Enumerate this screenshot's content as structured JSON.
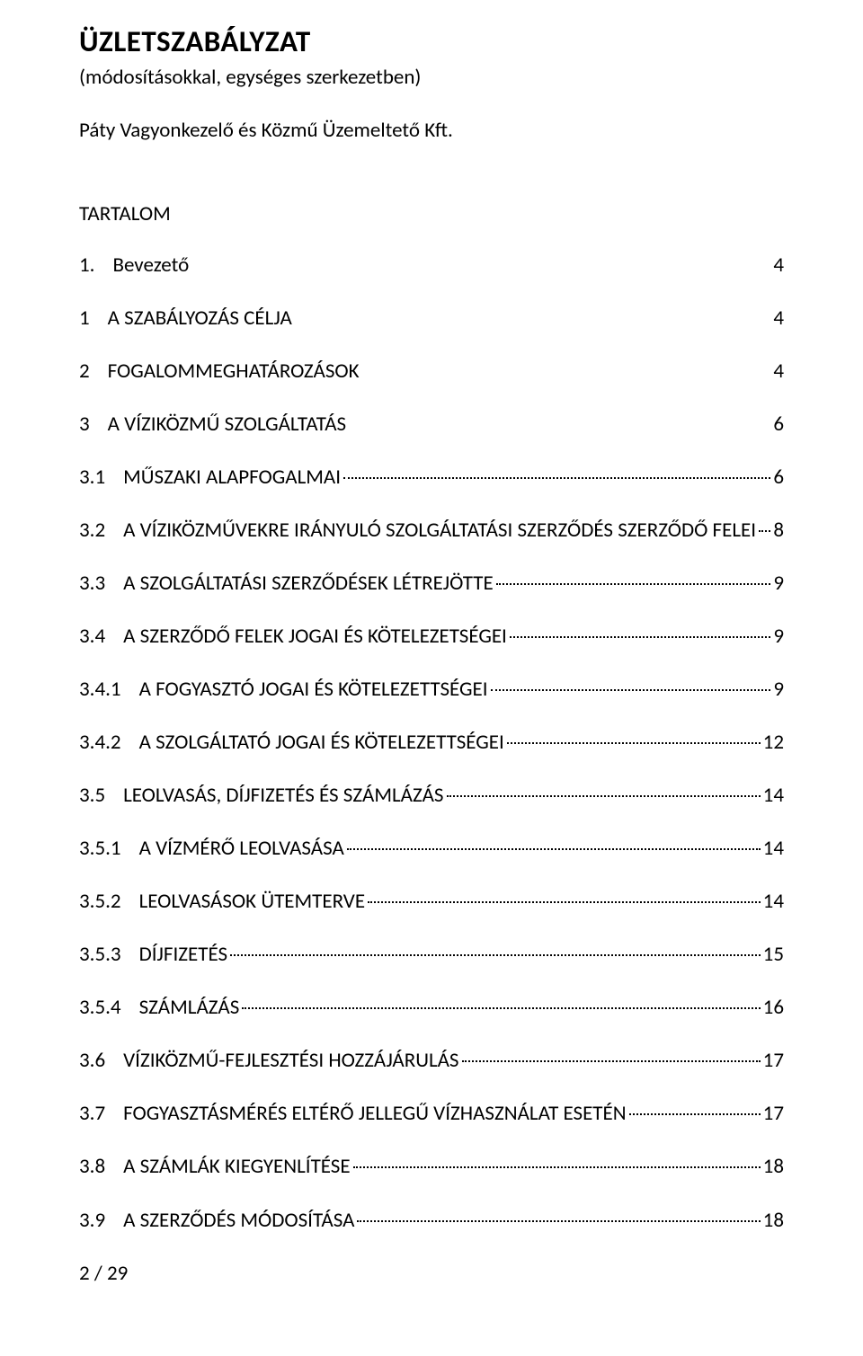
{
  "header": {
    "title": "ÜZLETSZABÁLYZAT",
    "subtitle": "(módosításokkal, egységes szerkezetben)",
    "company": "Páty Vagyonkezelő és Közmű Üzemeltető Kft.",
    "tartalom": "TARTALOM"
  },
  "toc": [
    {
      "num": "1.",
      "title": "Bevezető",
      "page": "4",
      "dotted": false,
      "indent": 0
    },
    {
      "num": "1",
      "title": "A SZABÁLYOZÁS CÉLJA",
      "page": "4",
      "dotted": false,
      "indent": 0
    },
    {
      "num": "2",
      "title": "FOGALOMMEGHATÁROZÁSOK",
      "page": "4",
      "dotted": false,
      "indent": 0
    },
    {
      "num": "3",
      "title": "A VÍZIKÖZMŰ SZOLGÁLTATÁS",
      "page": "6",
      "dotted": false,
      "indent": 0
    },
    {
      "num": "3.1",
      "title": "MŰSZAKI ALAPFOGALMAI",
      "page": "6",
      "dotted": true,
      "indent": 0
    },
    {
      "num": "3.2",
      "title": "A VÍZIKÖZMŰVEKRE IRÁNYULÓ SZOLGÁLTATÁSI SZERZŐDÉS SZERZŐDŐ FELEI",
      "page": "8",
      "dotted": true,
      "indent": 0
    },
    {
      "num": "3.3",
      "title": "A SZOLGÁLTATÁSI SZERZŐDÉSEK LÉTREJÖTTE",
      "page": "9",
      "dotted": true,
      "indent": 0
    },
    {
      "num": "3.4",
      "title": "A SZERZŐDŐ FELEK JOGAI ÉS KÖTELEZETSÉGEI",
      "page": "9",
      "dotted": true,
      "indent": 0
    },
    {
      "num": "3.4.1",
      "title": "A FOGYASZTÓ JOGAI ÉS KÖTELEZETTSÉGEI",
      "page": "9",
      "dotted": true,
      "indent": 0
    },
    {
      "num": "3.4.2",
      "title": "A SZOLGÁLTATÓ JOGAI ÉS KÖTELEZETTSÉGEI",
      "page": "12",
      "dotted": true,
      "indent": 0
    },
    {
      "num": "3.5",
      "title": "LEOLVASÁS, DÍJFIZETÉS ÉS SZÁMLÁZÁS",
      "page": "14",
      "dotted": true,
      "indent": 0
    },
    {
      "num": "3.5.1",
      "title": "A VÍZMÉRŐ LEOLVASÁSA",
      "page": "14",
      "dotted": true,
      "indent": 0
    },
    {
      "num": "3.5.2",
      "title": "LEOLVASÁSOK ÜTEMTERVE",
      "page": "14",
      "dotted": true,
      "indent": 0
    },
    {
      "num": "3.5.3",
      "title": "DÍJFIZETÉS",
      "page": "15",
      "dotted": true,
      "indent": 0
    },
    {
      "num": "3.5.4",
      "title": "SZÁMLÁZÁS",
      "page": "16",
      "dotted": true,
      "indent": 0
    },
    {
      "num": "3.6",
      "title": "VÍZIKÖZMŰ-FEJLESZTÉSI HOZZÁJÁRULÁS",
      "page": "17",
      "dotted": true,
      "indent": 0
    },
    {
      "num": "3.7",
      "title": "FOGYASZTÁSMÉRÉS ELTÉRŐ JELLEGŰ VÍZHASZNÁLAT ESETÉN",
      "page": "17",
      "dotted": true,
      "indent": 0
    },
    {
      "num": "3.8",
      "title": "A SZÁMLÁK KIEGYENLÍTÉSE",
      "page": "18",
      "dotted": true,
      "indent": 0
    },
    {
      "num": "3.9",
      "title": "A SZERZŐDÉS MÓDOSÍTÁSA",
      "page": "18",
      "dotted": true,
      "indent": 0
    }
  ],
  "footer": {
    "pagination": "2 / 29"
  }
}
